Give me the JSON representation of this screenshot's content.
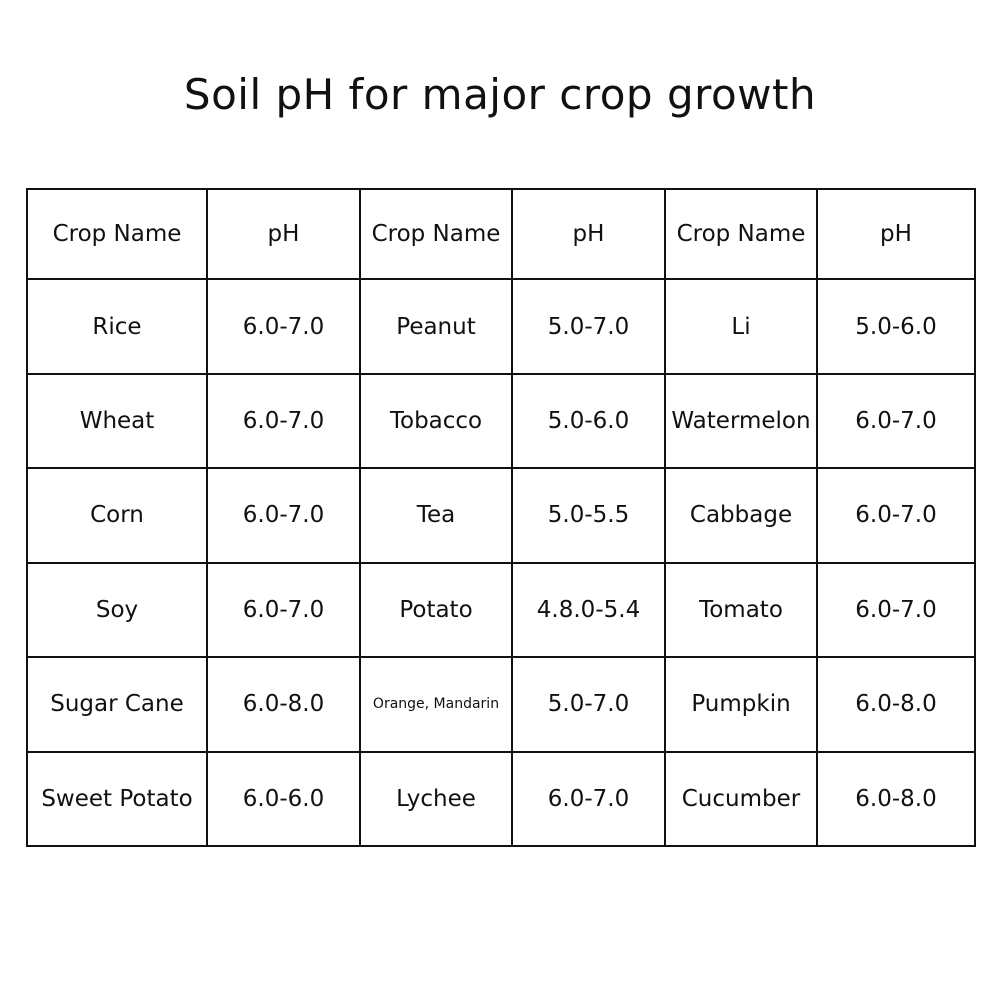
{
  "title": "Soil pH for major crop growth",
  "table": {
    "headers": [
      "Crop Name",
      "pH",
      "Crop Name",
      "pH",
      "Crop Name",
      "pH"
    ],
    "rows": [
      [
        "Rice",
        "6.0-7.0",
        "Peanut",
        "5.0-7.0",
        "Li",
        "5.0-6.0"
      ],
      [
        "Wheat",
        "6.0-7.0",
        "Tobacco",
        "5.0-6.0",
        "Watermelon",
        "6.0-7.0"
      ],
      [
        "Corn",
        "6.0-7.0",
        "Tea",
        "5.0-5.5",
        "Cabbage",
        "6.0-7.0"
      ],
      [
        "Soy",
        "6.0-7.0",
        "Potato",
        "4.8.0-5.4",
        "Tomato",
        "6.0-7.0"
      ],
      [
        "Sugar Cane",
        "6.0-8.0",
        "Orange, Mandarin",
        "5.0-7.0",
        "Pumpkin",
        "6.0-8.0"
      ],
      [
        "Sweet Potato",
        "6.0-6.0",
        "Lychee",
        "6.0-7.0",
        "Cucumber",
        "6.0-8.0"
      ]
    ]
  }
}
